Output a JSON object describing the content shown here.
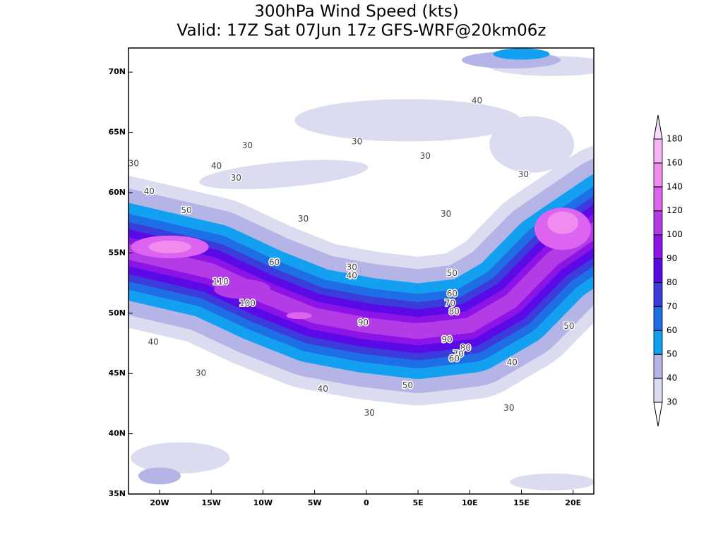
{
  "header": {
    "title_line1": "300hPa Wind Speed (kts)",
    "title_line2": "Valid: 17Z Sat 07Jun 17z GFS-WRF@20km06z"
  },
  "map": {
    "lonlim": [
      -23,
      22
    ],
    "latlim": [
      35,
      72
    ],
    "lon_ticks": [
      {
        "value": -20,
        "label": "20W"
      },
      {
        "value": -15,
        "label": "15W"
      },
      {
        "value": -10,
        "label": "10W"
      },
      {
        "value": -5,
        "label": "5W"
      },
      0,
      {
        "value": 5,
        "label": "5E"
      },
      {
        "value": 10,
        "label": "10E"
      },
      {
        "value": 15,
        "label": "15E"
      },
      {
        "value": 20,
        "label": "20E"
      }
    ],
    "lat_ticks": [
      {
        "value": 35,
        "label": "35N"
      },
      {
        "value": 40,
        "label": "40N"
      },
      {
        "value": 45,
        "label": "45N"
      },
      {
        "value": 50,
        "label": "50N"
      },
      {
        "value": 55,
        "label": "55N"
      },
      {
        "value": 60,
        "label": "60N"
      },
      {
        "value": 65,
        "label": "65N"
      },
      {
        "value": 70,
        "label": "70N"
      }
    ],
    "contour_labels": [
      {
        "value": 30,
        "lon": -11.5,
        "lat": 63.9
      },
      {
        "value": 30,
        "lon": -0.9,
        "lat": 64.2
      },
      {
        "value": 40,
        "lon": 10.7,
        "lat": 67.6
      },
      {
        "value": 30,
        "lon": 5.7,
        "lat": 63
      },
      {
        "value": 40,
        "lon": -14.5,
        "lat": 62.2
      },
      {
        "value": 30,
        "lon": -12.6,
        "lat": 61.2
      },
      {
        "value": 30,
        "lon": -22.5,
        "lat": 62.4
      },
      {
        "value": 40,
        "lon": -21,
        "lat": 60.1
      },
      {
        "value": 30,
        "lon": 15.2,
        "lat": 61.5
      },
      {
        "value": 50,
        "lon": -17.4,
        "lat": 58.5
      },
      {
        "value": 30,
        "lon": -6.1,
        "lat": 57.8
      },
      {
        "value": 30,
        "lon": 7.7,
        "lat": 58.2
      },
      {
        "value": 60,
        "lon": -8.9,
        "lat": 54.2
      },
      {
        "value": 30,
        "lon": -1.4,
        "lat": 53.8
      },
      {
        "value": 40,
        "lon": -1.4,
        "lat": 53.1
      },
      {
        "value": 50,
        "lon": 8.3,
        "lat": 53.3
      },
      {
        "value": 110,
        "lon": -14.1,
        "lat": 52.6
      },
      {
        "value": 60,
        "lon": 8.3,
        "lat": 51.6
      },
      {
        "value": 70,
        "lon": 8.1,
        "lat": 50.8
      },
      {
        "value": 80,
        "lon": 8.5,
        "lat": 50.1
      },
      {
        "value": 100,
        "lon": -11.5,
        "lat": 50.8
      },
      {
        "value": 90,
        "lon": -0.3,
        "lat": 49.2
      },
      {
        "value": 50,
        "lon": 19.6,
        "lat": 48.9
      },
      {
        "value": 90,
        "lon": 7.8,
        "lat": 47.8
      },
      {
        "value": 80,
        "lon": 9.6,
        "lat": 47.1
      },
      {
        "value": 70,
        "lon": 8.9,
        "lat": 46.6
      },
      {
        "value": 60,
        "lon": 8.5,
        "lat": 46.2
      },
      {
        "value": 40,
        "lon": -20.6,
        "lat": 47.6
      },
      {
        "value": 40,
        "lon": 14.1,
        "lat": 45.9
      },
      {
        "value": 30,
        "lon": -16,
        "lat": 45
      },
      {
        "value": 50,
        "lon": 4,
        "lat": 44
      },
      {
        "value": 40,
        "lon": -4.2,
        "lat": 43.7
      },
      {
        "value": 30,
        "lon": 0.3,
        "lat": 41.7
      },
      {
        "value": 30,
        "lon": 13.8,
        "lat": 42.1
      }
    ]
  },
  "colorbar": {
    "levels": [
      30,
      40,
      50,
      60,
      70,
      80,
      90,
      100,
      120,
      140,
      160,
      180
    ],
    "colors": [
      "#dcdcf0",
      "#b4b4e6",
      "#14a0f0",
      "#1e6ee6",
      "#3c3cdc",
      "#5a0ae6",
      "#8c14e6",
      "#b43ce6",
      "#dc64f0",
      "#f08cf0",
      "#f5b4f5"
    ],
    "under": "#ffffff",
    "over": "#fadcfa"
  }
}
